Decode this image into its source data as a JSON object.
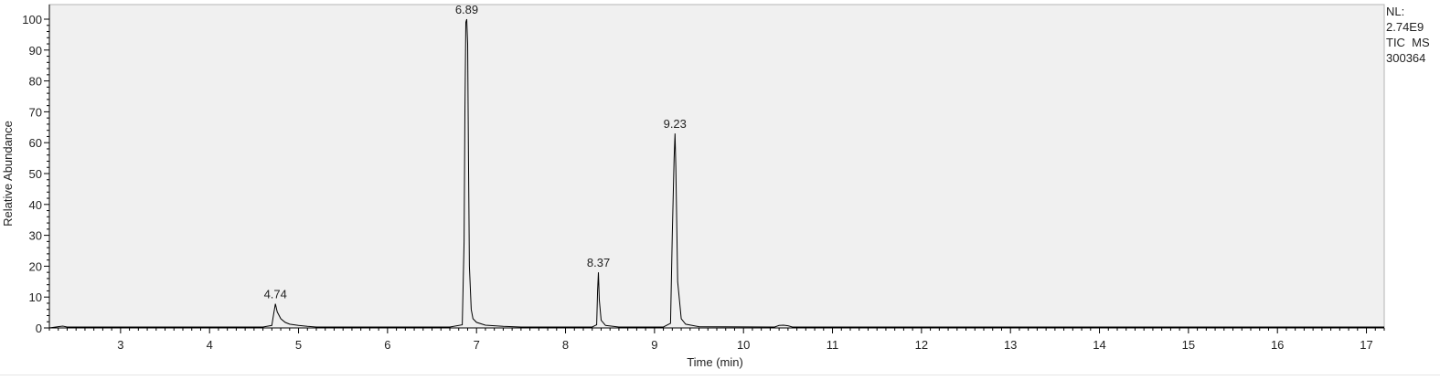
{
  "side_info": {
    "nl_label": "NL:",
    "nl_value": "2.74E9",
    "scan_type": "TIC  MS",
    "file_id": "300364"
  },
  "chart_data": {
    "type": "line",
    "title": "",
    "xlabel": "Time (min)",
    "ylabel": "Relative Abundance",
    "xlim": [
      2.2,
      17.2
    ],
    "ylim": [
      0,
      100
    ],
    "x_ticks": [
      3,
      4,
      5,
      6,
      7,
      8,
      9,
      10,
      11,
      12,
      13,
      14,
      15,
      16,
      17
    ],
    "y_ticks": [
      0,
      10,
      20,
      30,
      40,
      50,
      60,
      70,
      80,
      90,
      100
    ],
    "grid": false,
    "background_color": "#f0f0f0",
    "line_color": "#000000",
    "series": [
      {
        "x": [
          2.2,
          2.3,
          2.35,
          2.4,
          4.6,
          4.7,
          4.72,
          4.74,
          4.76,
          4.8,
          4.85,
          4.9,
          5.0,
          5.1,
          5.2,
          6.7,
          6.84,
          6.86,
          6.87,
          6.88,
          6.89,
          6.9,
          6.91,
          6.92,
          6.94,
          6.96,
          7.0,
          7.1,
          7.3,
          7.5,
          8.3,
          8.35,
          8.36,
          8.37,
          8.38,
          8.4,
          8.45,
          8.6,
          9.1,
          9.18,
          9.2,
          9.22,
          9.23,
          9.24,
          9.26,
          9.3,
          9.35,
          9.5,
          10.35,
          10.4,
          10.45,
          10.5,
          10.55,
          12.0,
          14.0,
          16.0,
          17.2
        ],
        "y": [
          0,
          0.4,
          0.6,
          0.3,
          0.3,
          0.8,
          4.5,
          7.8,
          5.2,
          3.0,
          1.8,
          1.2,
          0.8,
          0.5,
          0.3,
          0.3,
          1.0,
          28,
          70,
          99,
          100,
          92,
          55,
          20,
          6,
          3,
          1.8,
          0.9,
          0.5,
          0.3,
          0.3,
          1.0,
          12,
          18,
          9,
          2.5,
          0.8,
          0.3,
          0.3,
          1.5,
          30,
          55,
          63,
          52,
          15,
          3,
          1.2,
          0.4,
          0.3,
          0.8,
          0.9,
          0.7,
          0.3,
          0.3,
          0.3,
          0.3,
          0.3
        ]
      }
    ],
    "peak_labels": [
      {
        "label": "4.74",
        "x": 4.74,
        "y": 7.8
      },
      {
        "label": "6.89",
        "x": 6.89,
        "y": 100
      },
      {
        "label": "8.37",
        "x": 8.37,
        "y": 18
      },
      {
        "label": "9.23",
        "x": 9.23,
        "y": 63
      }
    ]
  }
}
